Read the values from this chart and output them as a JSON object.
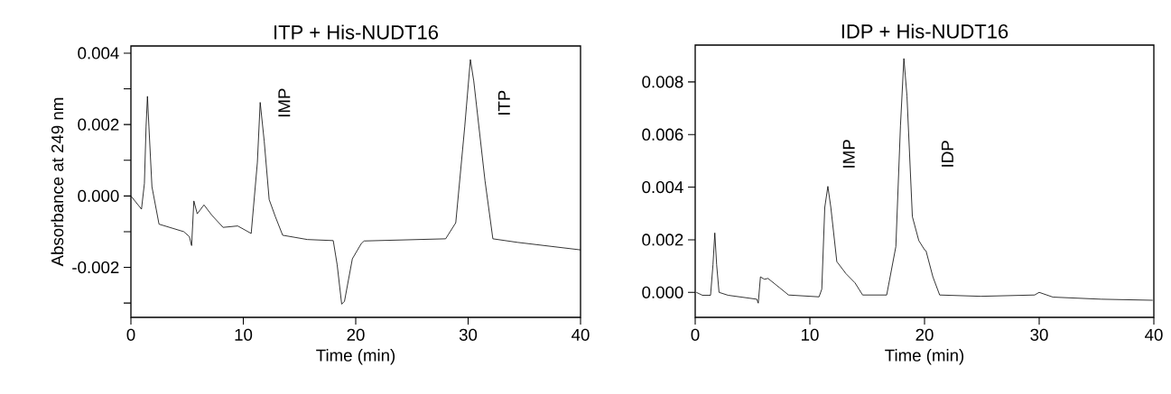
{
  "chart_data": [
    {
      "type": "line",
      "title": "ITP + His-NUDT16",
      "xlabel": "Time (min)",
      "ylabel": "Absorbance at 249 nm",
      "xlim": [
        0,
        40
      ],
      "xticks": [
        0,
        10,
        20,
        30,
        40
      ],
      "ylim": [
        -0.0034,
        0.0042
      ],
      "yticks": [
        {
          "value": -0.003,
          "label": null
        },
        {
          "value": -0.002,
          "label": "-0.002"
        },
        {
          "value": -0.001,
          "label": null
        },
        {
          "value": 0,
          "label": "0.000"
        },
        {
          "value": 0.001,
          "label": null
        },
        {
          "value": 0.002,
          "label": "0.002"
        },
        {
          "value": 0.003,
          "label": null
        },
        {
          "value": 0.004,
          "label": "0.004"
        }
      ],
      "series": [
        {
          "color": "#000000",
          "x": [
            0,
            0.94,
            1.2,
            1.35,
            1.47,
            1.6,
            1.87,
            2.5,
            4.7,
            5.2,
            5.4,
            5.6,
            5.9,
            6.5,
            7.2,
            8.2,
            9.5,
            10.7,
            11.25,
            11.5,
            11.86,
            12.3,
            12.85,
            13.5,
            15.7,
            18.0,
            18.35,
            18.75,
            19.0,
            19.7,
            20.5,
            20.75,
            28.0,
            28.9,
            29.7,
            30.2,
            30.5,
            31.5,
            32.2,
            34.4,
            40
          ],
          "values": [
            0.0,
            -0.00037,
            0.00035,
            0.00195,
            0.00279,
            0.00195,
            0.00026,
            -0.00079,
            -0.001,
            -0.00114,
            -0.00139,
            -0.00014,
            -0.0005,
            -0.00025,
            -0.00054,
            -0.00088,
            -0.00084,
            -0.00105,
            0.00094,
            0.00262,
            0.00153,
            -0.0001,
            -0.00058,
            -0.0011,
            -0.00122,
            -0.00125,
            -0.00193,
            -0.00303,
            -0.00295,
            -0.00176,
            -0.00133,
            -0.00126,
            -0.0012,
            -0.00075,
            0.00195,
            0.00382,
            0.00322,
            0.00043,
            -0.0012,
            -0.0013,
            -0.00151
          ]
        }
      ],
      "annotations": [
        "IMP",
        "ITP"
      ]
    },
    {
      "type": "line",
      "title": "IDP + His-NUDT16",
      "xlabel": "Time (min)",
      "xlim": [
        0,
        40
      ],
      "xticks": [
        0,
        10,
        20,
        30,
        40
      ],
      "ylim": [
        -0.00095,
        0.0094
      ],
      "yticks": [
        {
          "value": 0,
          "label": "0.000"
        },
        {
          "value": 0.002,
          "label": "0.002"
        },
        {
          "value": 0.004,
          "label": "0.004"
        },
        {
          "value": 0.006,
          "label": "0.006"
        },
        {
          "value": 0.008,
          "label": "0.008"
        }
      ],
      "series": [
        {
          "color": "#000000",
          "x": [
            0.1,
            0.63,
            1.34,
            1.55,
            1.71,
            1.87,
            2.08,
            2.87,
            5.37,
            5.5,
            5.69,
            6.03,
            6.35,
            7.35,
            8.14,
            10.8,
            11.04,
            11.3,
            11.57,
            11.83,
            12.35,
            13.15,
            13.94,
            14.6,
            16.7,
            17.5,
            17.9,
            18.2,
            18.47,
            18.94,
            19.5,
            20.0,
            20.13,
            20.73,
            21.32,
            24.9,
            29.6,
            30.0,
            31.2,
            35.4,
            39.9
          ],
          "values": [
            0.0,
            -0.00011,
            -0.00011,
            0.00105,
            0.00226,
            0.00105,
            0.0,
            -0.00011,
            -0.00026,
            -0.00041,
            0.00059,
            0.0005,
            0.00053,
            0.00018,
            -0.0001,
            -0.00017,
            0.00012,
            0.00323,
            0.00403,
            0.00323,
            0.00117,
            0.00071,
            0.00036,
            -0.0001,
            -0.0001,
            0.00174,
            0.00632,
            0.00889,
            0.00746,
            0.00288,
            0.00197,
            0.00162,
            0.00158,
            0.00059,
            -0.0001,
            -0.00015,
            -0.0001,
            0.0,
            -0.00018,
            -0.00026,
            -0.0003
          ]
        }
      ],
      "annotations": [
        "IMP",
        "IDP"
      ]
    }
  ]
}
